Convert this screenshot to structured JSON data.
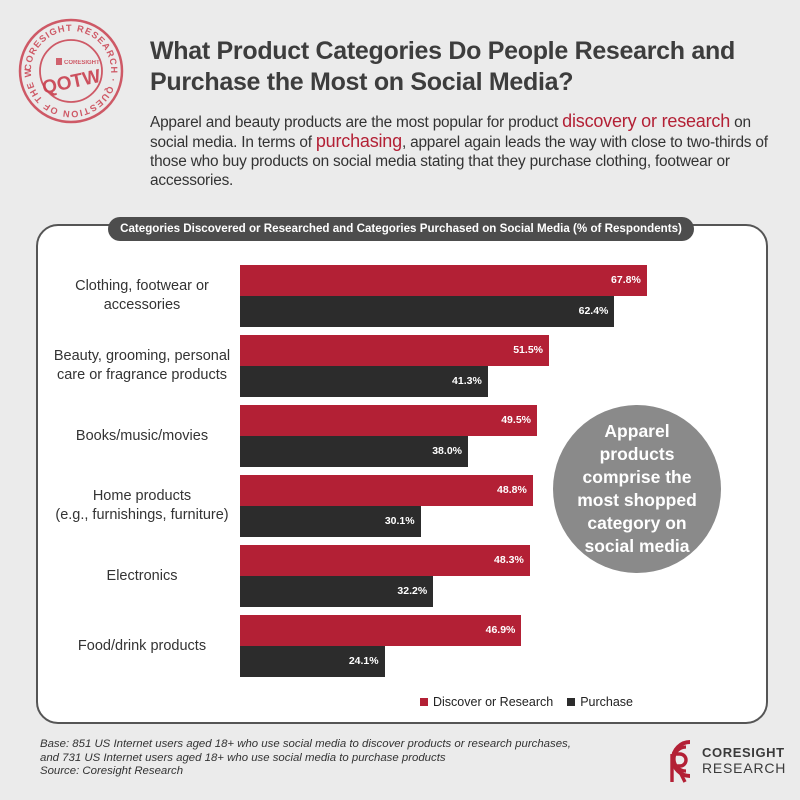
{
  "stamp": {
    "ring_text": "CORESIGHT RESEARCH · QUESTION OF THE WEEK ·",
    "center": "QOTW",
    "mini_brand": "CORESIGHT"
  },
  "title": {
    "line1": "What Product Categories Do People Research and",
    "line2": "Purchase the Most on Social Media?"
  },
  "subtitle": {
    "p1": "Apparel and beauty products are the most popular for product ",
    "h1": "discovery or research",
    "p2": " on social media. In terms of ",
    "h2": "purchasing",
    "p3": ", apparel again leads the way with close to two-thirds of those who buy products on social media stating that they purchase clothing, footwear or accessories."
  },
  "colors": {
    "discover": "#b32035",
    "purchase": "#2c2c2c",
    "accent": "#b32035",
    "callout": "#8a8a8a"
  },
  "chart_data": {
    "type": "bar",
    "orientation": "horizontal",
    "title": "Categories Discovered or Researched and Categories Purchased on Social Media (% of Respondents)",
    "categories": [
      [
        "Clothing, footwear or",
        "accessories"
      ],
      [
        "Beauty, grooming, personal",
        "care or fragrance products"
      ],
      [
        "Books/music/movies"
      ],
      [
        "Home products",
        "(e.g., furnishings, furniture)"
      ],
      [
        "Electronics"
      ],
      [
        "Food/drink products"
      ]
    ],
    "series": [
      {
        "name": "Discover or Research",
        "values": [
          67.8,
          51.5,
          49.5,
          48.8,
          48.3,
          46.9
        ]
      },
      {
        "name": "Purchase",
        "values": [
          62.4,
          41.3,
          38.0,
          30.1,
          32.2,
          24.1
        ]
      }
    ],
    "value_suffix": "%",
    "xlim": [
      0,
      100
    ],
    "grid": false,
    "legend_position": "bottom"
  },
  "callout": {
    "text": "Apparel products comprise the most shopped category on social media"
  },
  "source": {
    "line1": "Base: 851 US Internet users aged 18+ who use social media to discover products or research purchases,",
    "line2": "and 731 US Internet users aged 18+ who use social media to purchase products",
    "line3": "Source: Coresight Research"
  },
  "logo": {
    "line1": "CORESIGHT",
    "line2": "RESEARCH"
  }
}
